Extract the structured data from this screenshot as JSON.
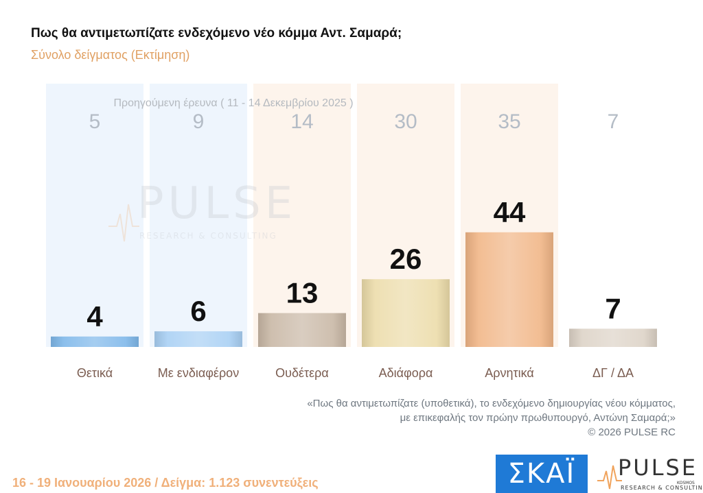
{
  "header": {
    "title": "Πως θα αντιμετωπίζατε ενδεχόμενο νέο κόμμα Αντ. Σαμαρά;",
    "subtitle": "Σύνολο δείγματος  (Εκτίμηση)"
  },
  "chart_data": {
    "type": "bar",
    "categories": [
      "Θετικά",
      "Με ενδιαφέρον",
      "Ουδέτερα",
      "Αδιάφορα",
      "Αρνητικά",
      "ΔΓ / ΔΑ"
    ],
    "series": [
      {
        "values": [
          4,
          6,
          13,
          26,
          44,
          7
        ]
      },
      {
        "name": "Προηγούμενη έρευνα ( 11 - 14 Δεκεμβρίου 2025 )",
        "values": [
          5,
          9,
          14,
          30,
          35,
          7
        ]
      }
    ],
    "ylim": [
      0,
      50
    ],
    "colors": [
      "#7fb8ea",
      "#a9d0f4",
      "#c9b8a6",
      "#ecdcaa",
      "#f1b687",
      "#ddd3c7"
    ],
    "background_colors": [
      "#eef5fd",
      "#eef5fd",
      "#fdf4ec",
      "#fdf4ec",
      "#fdf4ec",
      null
    ],
    "grid": false,
    "legend": "top-center"
  },
  "note": {
    "line1": "«Πως θα αντιμετωπίζατε (υποθετικά), το ενδεχόμενο δημιουργίας νέου κόμματος,",
    "line2": "με επικεφαλής τον πρώην πρωθυπουργό, Αντώνη Σαμαρά;»",
    "line3": "©  2026  PULSE RC"
  },
  "footer": {
    "text": "16 - 19 Ιανουαρίου 2026  /  Δείγμα:  1.123 συνεντεύξεις"
  },
  "watermark": {
    "word": "PULSE",
    "sub": "RESEARCH & CONSULTING"
  },
  "logos": {
    "skai": "ΣΚΑΪ",
    "pulse_word": "PULSE",
    "pulse_sub": "RESEARCH & CONSULTING",
    "pulse_kosmos": "KOSMOS"
  }
}
